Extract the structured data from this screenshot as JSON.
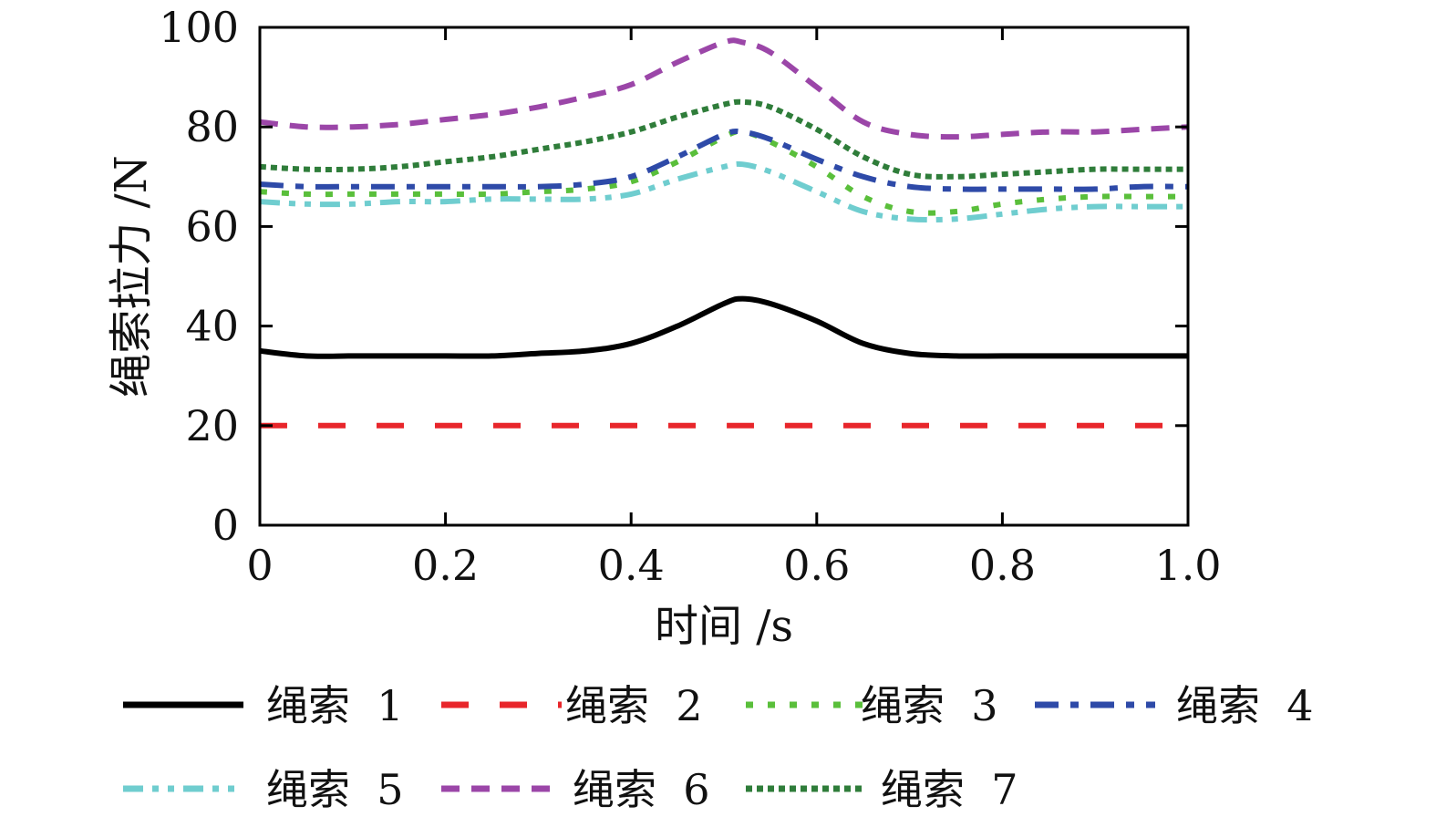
{
  "chart_data": {
    "type": "line",
    "title": "",
    "xlabel": "时间 /s",
    "ylabel": "绳索拉力 /N",
    "xlim": [
      0,
      1.0
    ],
    "ylim": [
      0,
      100
    ],
    "xticks": [
      {
        "value": 0,
        "label": "0"
      },
      {
        "value": 0.2,
        "label": "0.2"
      },
      {
        "value": 0.4,
        "label": "0.4"
      },
      {
        "value": 0.6,
        "label": "0.6"
      },
      {
        "value": 0.8,
        "label": "0.8"
      },
      {
        "value": 1.0,
        "label": "1.0"
      }
    ],
    "yticks": [
      {
        "value": 0,
        "label": "0"
      },
      {
        "value": 20,
        "label": "20"
      },
      {
        "value": 40,
        "label": "40"
      },
      {
        "value": 60,
        "label": "60"
      },
      {
        "value": 80,
        "label": "80"
      },
      {
        "value": 100,
        "label": "100"
      }
    ],
    "grid": false,
    "legend_position": "bottom",
    "x": [
      0,
      0.05,
      0.1,
      0.15,
      0.2,
      0.25,
      0.3,
      0.35,
      0.4,
      0.45,
      0.5,
      0.52,
      0.55,
      0.6,
      0.65,
      0.7,
      0.75,
      0.8,
      0.85,
      0.9,
      0.95,
      1.0
    ],
    "series": [
      {
        "name": "绳索 1",
        "legend_label": "绳索  1",
        "color": "#000000",
        "style": "solid",
        "values": [
          35,
          34,
          34,
          34,
          34,
          34,
          34.5,
          35,
          36.5,
          40,
          44.5,
          45.5,
          44.5,
          41,
          36.5,
          34.5,
          34,
          34,
          34,
          34,
          34,
          34
        ]
      },
      {
        "name": "绳索 2",
        "legend_label": "绳索  2",
        "color": "#e8262b",
        "style": "dashed",
        "values": [
          20,
          20,
          20,
          20,
          20,
          20,
          20,
          20,
          20,
          20,
          20,
          20,
          20,
          20,
          20,
          20,
          20,
          20,
          20,
          20,
          20,
          20
        ]
      },
      {
        "name": "绳索 3",
        "legend_label": "绳索  3",
        "color": "#5abf3b",
        "style": "dotted",
        "values": [
          67,
          66.5,
          66.5,
          66.5,
          66.5,
          66.5,
          67,
          67.5,
          69,
          73,
          78,
          79,
          77,
          72,
          66,
          63,
          63,
          64.5,
          65.5,
          66,
          66,
          66
        ]
      },
      {
        "name": "绳索 4",
        "legend_label": "绳索  4",
        "color": "#2e4aa8",
        "style": "dashdot",
        "values": [
          68.5,
          68,
          68,
          68,
          68,
          68,
          68,
          68.5,
          70,
          74,
          78.5,
          79,
          77.5,
          73.5,
          70,
          68,
          67.5,
          67.5,
          67.5,
          67.5,
          68,
          68
        ]
      },
      {
        "name": "绳索 5",
        "legend_label": "绳索  5",
        "color": "#6fcdcf",
        "style": "dashdotdot",
        "values": [
          65,
          64.5,
          64.5,
          65,
          65,
          65.5,
          65.5,
          65.5,
          66.5,
          69.5,
          72,
          72.5,
          71,
          67,
          63,
          61.5,
          61.5,
          62.5,
          63.5,
          64,
          64,
          64
        ]
      },
      {
        "name": "绳索 6",
        "legend_label": "绳索  6",
        "color": "#9b46a8",
        "style": "dashed_short",
        "values": [
          81,
          80,
          80,
          80.5,
          81.5,
          82.5,
          84,
          86,
          88.5,
          93,
          97,
          97,
          95,
          88,
          81,
          78.5,
          78,
          78.5,
          79,
          79,
          79.5,
          80
        ]
      },
      {
        "name": "绳索 7",
        "legend_label": "绳索  7",
        "color": "#2f7d3a",
        "style": "dense_dotted",
        "values": [
          72,
          71.5,
          71.5,
          72,
          73,
          74,
          75.5,
          77,
          79,
          82,
          84.5,
          85,
          84,
          79.5,
          74,
          70.5,
          70,
          70.5,
          71,
          71.5,
          71.5,
          71.5
        ]
      }
    ]
  }
}
